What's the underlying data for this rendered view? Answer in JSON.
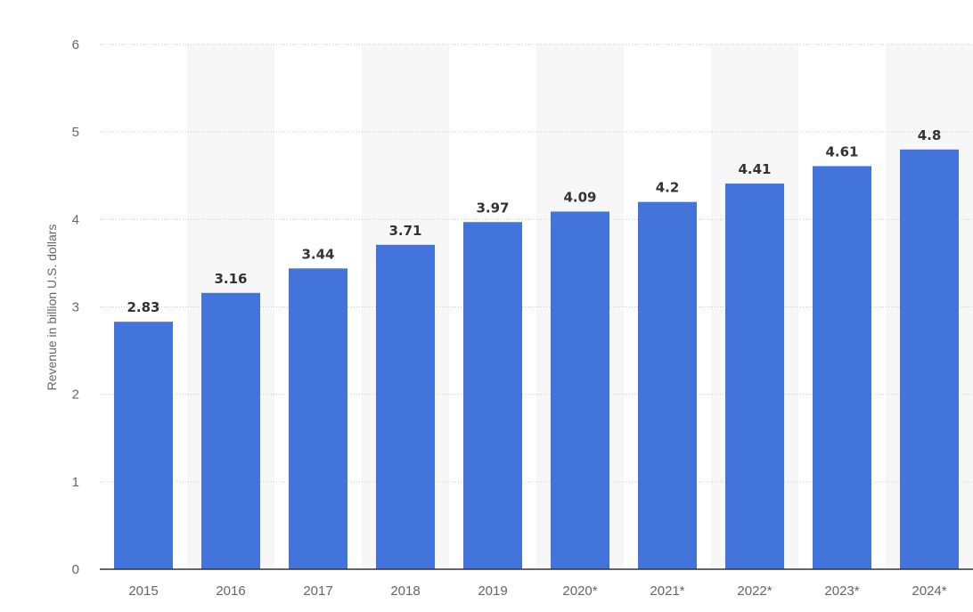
{
  "chart_data": {
    "type": "bar",
    "title": "",
    "xlabel": "",
    "ylabel": "Revenue in billion U.S. dollars",
    "categories": [
      "2015",
      "2016",
      "2017",
      "2018",
      "2019",
      "2020*",
      "2021*",
      "2022*",
      "2023*",
      "2024*"
    ],
    "values": [
      2.83,
      3.16,
      3.44,
      3.71,
      3.97,
      4.09,
      4.2,
      4.41,
      4.61,
      4.8
    ],
    "value_labels": [
      "2.83",
      "3.16",
      "3.44",
      "3.71",
      "3.97",
      "4.09",
      "4.2",
      "4.41",
      "4.61",
      "4.8"
    ],
    "ylim": [
      0,
      6
    ],
    "yticks": [
      "0",
      "1",
      "2",
      "3",
      "4",
      "5",
      "6"
    ],
    "grid": true,
    "legend": "none",
    "colors": {
      "bar": "#4274dc",
      "band": "#f7f7f7",
      "grid": "#c8c8c8",
      "axis": "#333333"
    }
  }
}
